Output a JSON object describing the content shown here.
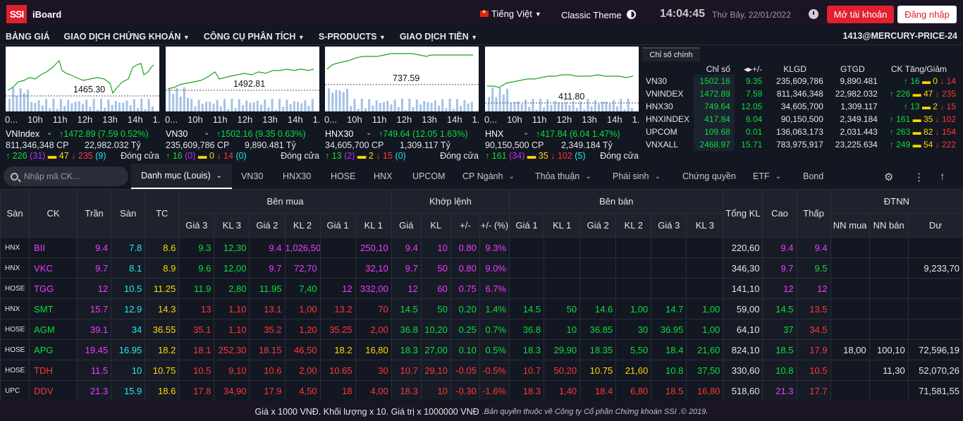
{
  "header": {
    "logo": "SSI",
    "app_name": "iBoard",
    "language": "Tiếng Việt",
    "theme": "Classic Theme",
    "time": "14:04:45",
    "date": "Thứ Bảy, 22/01/2022",
    "open_account": "Mở tài khoản",
    "login": "Đăng nhập"
  },
  "menu": {
    "items": [
      "BẢNG GIÁ",
      "GIAO DỊCH CHỨNG KHOÁN",
      "CÔNG CỤ PHÂN TÍCH",
      "S-PRODUCTS",
      "GIAO DỊCH TIỀN"
    ],
    "user": "1413@MERCURY-PRICE-24"
  },
  "cards": [
    {
      "name": "VNIndex",
      "ref_label": "1465.30",
      "ticks": [
        "0...",
        "10h",
        "11h",
        "12h",
        "13h",
        "14h",
        "1..."
      ],
      "change": "1472.89 (7.59  0.52%)",
      "volume": "811,346,348 CP",
      "value": "22,982.032 Tỷ",
      "up": "226",
      "ceil": "(31)",
      "unch": "47",
      "down": "235",
      "floor": "(9)",
      "status": "Đóng cửa"
    },
    {
      "name": "VN30",
      "ref_label": "1492.81",
      "ticks": [
        "0...",
        "10h",
        "11h",
        "12h",
        "13h",
        "14h",
        "1..."
      ],
      "change": "1502.16 (9.35  0.63%)",
      "volume": "235,609,786 CP",
      "value": "9,890.481 Tỷ",
      "up": "16",
      "ceil": "(0)",
      "unch": "0",
      "down": "14",
      "floor": "(0)",
      "status": "Đóng cửa"
    },
    {
      "name": "HNX30",
      "ref_label": "737.59",
      "ticks": [
        "0...",
        "10h",
        "11h",
        "12h",
        "13h",
        "14h",
        "1..."
      ],
      "change": "749.64 (12.05  1.63%)",
      "volume": "34,605,700 CP",
      "value": "1,309.117 Tỷ",
      "up": "13",
      "ceil": "(2)",
      "unch": "2",
      "down": "15",
      "floor": "(0)",
      "status": "Đóng cửa"
    },
    {
      "name": "HNX",
      "ref_label": "411.80",
      "ticks": [
        "0...",
        "10h",
        "11h",
        "12h",
        "13h",
        "14h",
        "1..."
      ],
      "change": "417.84 (6.04  1.47%)",
      "volume": "90,150,500 CP",
      "value": "2,349.184 Tỷ",
      "up": "161",
      "ceil": "(34)",
      "unch": "35",
      "down": "102",
      "floor": "(5)",
      "status": "Đóng cửa"
    }
  ],
  "index_table": {
    "tab": "Chỉ số chính",
    "headers": [
      "Chỉ số",
      "+/-",
      "KLGD",
      "GTGD",
      "CK Tăng/Giảm"
    ],
    "rows": [
      {
        "name": "VN30",
        "value": "1502.16",
        "chg": "9.35",
        "vol": "235,609,786",
        "val": "9,890.481",
        "up": "16",
        "unch": "0",
        "down": "14"
      },
      {
        "name": "VNINDEX",
        "value": "1472.89",
        "chg": "7.59",
        "vol": "811,346,348",
        "val": "22,982.032",
        "up": "226",
        "unch": "47",
        "down": "235"
      },
      {
        "name": "HNX30",
        "value": "749.64",
        "chg": "12.05",
        "vol": "34,605,700",
        "val": "1,309.117",
        "up": "13",
        "unch": "2",
        "down": "15"
      },
      {
        "name": "HNXINDEX",
        "value": "417.84",
        "chg": "6.04",
        "vol": "90,150,500",
        "val": "2,349.184",
        "up": "161",
        "unch": "35",
        "down": "102"
      },
      {
        "name": "UPCOM",
        "value": "109.68",
        "chg": "0.01",
        "vol": "136,063,173",
        "val": "2,031.443",
        "up": "263",
        "unch": "82",
        "down": "154"
      },
      {
        "name": "VNXALL",
        "value": "2468.97",
        "chg": "15.71",
        "vol": "783,975,917",
        "val": "23,225.634",
        "up": "249",
        "unch": "54",
        "down": "222"
      }
    ]
  },
  "toolbar": {
    "search_placeholder": "Nhập mã CK...",
    "tabs": [
      "Danh mục (Louis)",
      "VN30",
      "HNX30",
      "HOSE",
      "HNX",
      "UPCOM",
      "CP Ngành",
      "Thỏa thuận",
      "Phái sinh",
      "Chứng quyền",
      "ETF",
      "Bond"
    ]
  },
  "board": {
    "group_headers": {
      "buy": "Bên mua",
      "match": "Khớp lệnh",
      "sell": "Bên bán",
      "foreign": "ĐTNN"
    },
    "headers": {
      "san": "Sàn",
      "ck": "CK",
      "tran": "Trần",
      "san2": "Sàn",
      "tc": "TC",
      "gia3": "Giá 3",
      "kl3": "KL 3",
      "gia2": "Giá 2",
      "kl2": "KL 2",
      "gia1": "Giá 1",
      "kl1": "KL 1",
      "gia": "Giá",
      "kl": "KL",
      "chg": "+/-",
      "pct": "+/- (%)",
      "tong": "Tổng KL",
      "cao": "Cao",
      "thap": "Thấp",
      "nnmua": "NN mua",
      "nnban": "NN bán",
      "du": "Dư"
    },
    "rows": [
      {
        "ex": "HNX",
        "ck": "BII",
        "c": "ceil",
        "tran": "9.4",
        "san": "7.8",
        "tc": "8.6",
        "b3": "9.3",
        "b3c": "up",
        "v3": "12,30",
        "b2": "9.4",
        "b2c": "ceil",
        "v2": "1,026,50",
        "b1": "",
        "b1c": "",
        "v1": "250,10",
        "m": "9.4",
        "mc": "ceil",
        "mv": "10",
        "chg": "0.80",
        "pct": "9.3%",
        "s1": "",
        "s1c": "",
        "sv1": "",
        "s2": "",
        "s2c": "",
        "sv2": "",
        "s3": "",
        "s3c": "",
        "sv3": "",
        "tong": "220,60",
        "cao": "9.4",
        "caoc": "ceil",
        "thap": "9.4",
        "thapc": "ceil",
        "nnm": "",
        "nnb": "",
        "du": ""
      },
      {
        "ex": "HNX",
        "ck": "VKC",
        "c": "ceil",
        "tran": "9.7",
        "san": "8.1",
        "tc": "8.9",
        "b3": "9.6",
        "b3c": "up",
        "v3": "12,00",
        "b2": "9.7",
        "b2c": "ceil",
        "v2": "72,70",
        "b1": "",
        "b1c": "",
        "v1": "32,10",
        "m": "9.7",
        "mc": "ceil",
        "mv": "50",
        "chg": "0.80",
        "pct": "9.0%",
        "s1": "",
        "s1c": "",
        "sv1": "",
        "s2": "",
        "s2c": "",
        "sv2": "",
        "s3": "",
        "s3c": "",
        "sv3": "",
        "tong": "346,30",
        "cao": "9.7",
        "caoc": "ceil",
        "thap": "9.5",
        "thapc": "up",
        "nnm": "",
        "nnb": "",
        "du": "9,233,70"
      },
      {
        "ex": "HOSE",
        "ck": "TGG",
        "c": "ceil",
        "tran": "12",
        "san": "10.5",
        "tc": "11.25",
        "b3": "11.9",
        "b3c": "up",
        "v3": "2,80",
        "b2": "11.95",
        "b2c": "up",
        "v2": "7,40",
        "b1": "12",
        "b1c": "ceil",
        "v1": "332,00",
        "m": "12",
        "mc": "ceil",
        "mv": "60",
        "chg": "0.75",
        "pct": "6.7%",
        "s1": "",
        "s1c": "",
        "sv1": "",
        "s2": "",
        "s2c": "",
        "sv2": "",
        "s3": "",
        "s3c": "",
        "sv3": "",
        "tong": "141,10",
        "cao": "12",
        "caoc": "ceil",
        "thap": "12",
        "thapc": "ceil",
        "nnm": "",
        "nnb": "",
        "du": ""
      },
      {
        "ex": "HNX",
        "ck": "SMT",
        "c": "up",
        "tran": "15.7",
        "san": "12.9",
        "tc": "14.3",
        "b3": "13",
        "b3c": "dn",
        "v3": "1,10",
        "b2": "13.1",
        "b2c": "dn",
        "v2": "1,00",
        "b1": "13.2",
        "b1c": "dn",
        "v1": "70",
        "m": "14.5",
        "mc": "up",
        "mv": "50",
        "chg": "0.20",
        "pct": "1.4%",
        "s1": "14.5",
        "s1c": "up",
        "sv1": "50",
        "s2": "14.6",
        "s2c": "up",
        "sv2": "1,00",
        "s3": "14.7",
        "s3c": "up",
        "sv3": "1,00",
        "tong": "59,00",
        "cao": "14.5",
        "caoc": "up",
        "thap": "13.5",
        "thapc": "dn",
        "nnm": "",
        "nnb": "",
        "du": ""
      },
      {
        "ex": "HOSE",
        "ck": "AGM",
        "c": "up",
        "tran": "39.1",
        "san": "34",
        "tc": "36.55",
        "b3": "35.1",
        "b3c": "dn",
        "v3": "1,10",
        "b2": "35.2",
        "b2c": "dn",
        "v2": "1,20",
        "b1": "35.25",
        "b1c": "dn",
        "v1": "2,00",
        "m": "36.8",
        "mc": "up",
        "mv": "10,20",
        "chg": "0.25",
        "pct": "0.7%",
        "s1": "36.8",
        "s1c": "up",
        "sv1": "10",
        "s2": "36.85",
        "s2c": "up",
        "sv2": "30",
        "s3": "36.95",
        "s3c": "up",
        "sv3": "1,00",
        "tong": "64,10",
        "cao": "37",
        "caoc": "up",
        "thap": "34.5",
        "thapc": "dn",
        "nnm": "",
        "nnb": "",
        "du": ""
      },
      {
        "ex": "HOSE",
        "ck": "APG",
        "c": "up",
        "tran": "19.45",
        "san": "16.95",
        "tc": "18.2",
        "b3": "18.1",
        "b3c": "dn",
        "v3": "252,30",
        "b2": "18.15",
        "b2c": "dn",
        "v2": "46,50",
        "b1": "18.2",
        "b1c": "ref",
        "v1": "16,80",
        "m": "18.3",
        "mc": "up",
        "mv": "27,00",
        "chg": "0.10",
        "pct": "0.5%",
        "s1": "18.3",
        "s1c": "up",
        "sv1": "29,90",
        "s2": "18.35",
        "s2c": "up",
        "sv2": "5,50",
        "s3": "18.4",
        "s3c": "up",
        "sv3": "21,60",
        "tong": "824,10",
        "cao": "18.5",
        "caoc": "up",
        "thap": "17.9",
        "thapc": "dn",
        "nnm": "18,00",
        "nnb": "100,10",
        "du": "72,596,19"
      },
      {
        "ex": "HOSE",
        "ck": "TDH",
        "c": "dn",
        "tran": "11.5",
        "san": "10",
        "tc": "10.75",
        "b3": "10.5",
        "b3c": "dn",
        "v3": "9,10",
        "b2": "10.6",
        "b2c": "dn",
        "v2": "2,00",
        "b1": "10.65",
        "b1c": "dn",
        "v1": "30",
        "m": "10.7",
        "mc": "dn",
        "mv": "29,10",
        "chg": "-0.05",
        "pct": "-0.5%",
        "s1": "10.7",
        "s1c": "dn",
        "sv1": "50,20",
        "s2": "10.75",
        "s2c": "ref",
        "sv2": "21,60",
        "s3": "10.8",
        "s3c": "up",
        "sv3": "37,50",
        "tong": "330,60",
        "cao": "10.8",
        "caoc": "up",
        "thap": "10.5",
        "thapc": "dn",
        "nnm": "",
        "nnb": "11,30",
        "du": "52,070,26"
      },
      {
        "ex": "UPC",
        "ck": "DDV",
        "c": "dn",
        "tran": "21.3",
        "san": "15.9",
        "tc": "18.6",
        "b3": "17.8",
        "b3c": "dn",
        "v3": "34,90",
        "b2": "17.9",
        "b2c": "dn",
        "v2": "4,50",
        "b1": "18",
        "b1c": "dn",
        "v1": "4,00",
        "m": "18.3",
        "mc": "dn",
        "mv": "10",
        "chg": "-0.30",
        "pct": "-1.6%",
        "s1": "18.3",
        "s1c": "dn",
        "sv1": "1,40",
        "s2": "18.4",
        "s2c": "dn",
        "sv2": "6,80",
        "s3": "18.5",
        "s3c": "dn",
        "sv3": "16,80",
        "tong": "518,60",
        "cao": "21.3",
        "caoc": "ceil",
        "thap": "17.7",
        "thapc": "dn",
        "nnm": "",
        "nnb": "",
        "du": "71,581,55"
      }
    ]
  },
  "footer": {
    "main": "Giá x 1000 VNĐ. Khối lượng x 10. Giá trị x 1000000 VNĐ",
    "copyright": ".Bản quyền thuộc về Công ty Cổ phần Chứng khoán SSI .© 2019."
  },
  "colors": {
    "up": "#0bdf39",
    "down": "#ff3737",
    "ref": "#ffd900",
    "ceil": "#f23aff",
    "floor": "#1eeeee",
    "accent": "#e2202e"
  },
  "icons": [
    "ssi-logo",
    "vietnam-flag-icon",
    "chevron-down-icon",
    "theme-toggle-icon",
    "alarm-clock-icon",
    "search-icon",
    "gear-icon",
    "more-vertical-icon",
    "arrow-up-icon",
    "arrow-up-green-icon",
    "arrow-down-red-icon",
    "equal-bar-icon"
  ]
}
